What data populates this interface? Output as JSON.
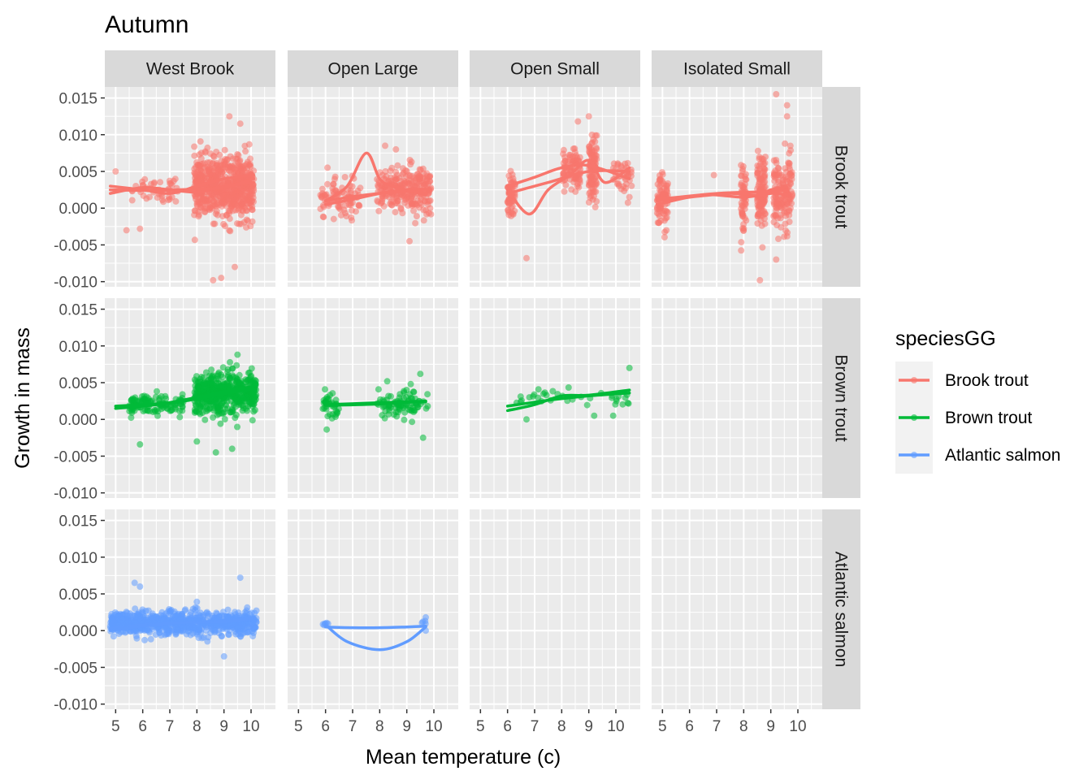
{
  "chart_data": {
    "type": "scatter",
    "title": "Autumn",
    "xlabel": "Mean temperature (c)",
    "ylabel": "Growth in mass",
    "xlim": [
      4.6,
      10.9
    ],
    "ylim": [
      -0.0107,
      0.0165
    ],
    "x_ticks": [
      5,
      6,
      7,
      8,
      9,
      10
    ],
    "y_ticks": [
      -0.01,
      -0.005,
      0.0,
      0.005,
      0.01,
      0.015
    ],
    "y_tick_labels": [
      "-0.010",
      "-0.005",
      "0.000",
      "0.005",
      "0.010",
      "0.015"
    ],
    "facet_columns": [
      "West Brook",
      "Open Large",
      "Open Small",
      "Isolated Small"
    ],
    "facet_rows": [
      "Brook trout",
      "Brown trout",
      "Atlantic salmon"
    ],
    "grid": true,
    "legend": {
      "title": "speciesGG",
      "position": "right",
      "entries": [
        {
          "label": "Brook trout",
          "color": "#F8766D"
        },
        {
          "label": "Brown trout",
          "color": "#00BA38"
        },
        {
          "label": "Atlantic salmon",
          "color": "#619CFF"
        }
      ]
    },
    "series": [
      {
        "species": "Brook trout",
        "river": "West Brook",
        "color": "#F8766D",
        "scatter": [
          {
            "x_range": [
              5.6,
              7.3
            ],
            "y_center": 0.0027,
            "y_spread": 0.0022,
            "n": 45
          },
          {
            "x_range": [
              7.9,
              10.1
            ],
            "y_center": 0.0028,
            "y_spread": 0.0045,
            "n": 650
          }
        ],
        "outliers": [
          [
            8.6,
            -0.0098
          ],
          [
            8.9,
            -0.0095
          ],
          [
            9.4,
            -0.008
          ],
          [
            9.2,
            0.0125
          ],
          [
            9.6,
            0.0115
          ],
          [
            5.0,
            0.005
          ],
          [
            5.4,
            -0.003
          ],
          [
            5.9,
            -0.0028
          ]
        ],
        "fit_lines": [
          [
            [
              4.8,
              0.002
            ],
            [
              6.0,
              0.0028
            ],
            [
              7.0,
              0.0025
            ],
            [
              8.0,
              0.0022
            ],
            [
              9.0,
              0.003
            ],
            [
              10.1,
              0.0035
            ]
          ],
          [
            [
              4.8,
              0.003
            ],
            [
              6.0,
              0.0025
            ],
            [
              7.0,
              0.002
            ],
            [
              8.0,
              0.003
            ],
            [
              9.0,
              0.004
            ],
            [
              10.1,
              0.0045
            ]
          ],
          [
            [
              4.8,
              0.0025
            ],
            [
              6.5,
              0.0024
            ],
            [
              8.0,
              0.0026
            ],
            [
              9.0,
              0.0028
            ],
            [
              10.1,
              0.004
            ]
          ]
        ]
      },
      {
        "species": "Brook trout",
        "river": "Open Large",
        "color": "#F8766D",
        "scatter": [
          {
            "x_range": [
              5.8,
              7.3
            ],
            "y_center": 0.0012,
            "y_spread": 0.003,
            "n": 90
          },
          {
            "x_range": [
              7.9,
              9.9
            ],
            "y_center": 0.0025,
            "y_spread": 0.0035,
            "n": 260
          }
        ],
        "outliers": [
          [
            8.2,
            0.0085
          ],
          [
            8.6,
            0.008
          ],
          [
            9.1,
            -0.0045
          ]
        ],
        "fit_lines": [
          [
            [
              6.0,
              0.001
            ],
            [
              6.8,
              0.003
            ],
            [
              7.5,
              0.0075
            ],
            [
              8.0,
              0.004
            ],
            [
              8.5,
              0.003
            ],
            [
              9.7,
              0.0018
            ]
          ],
          [
            [
              6.0,
              0.0005
            ],
            [
              7.0,
              0.0012
            ],
            [
              8.0,
              0.002
            ],
            [
              9.0,
              0.0025
            ],
            [
              9.7,
              0.0026
            ]
          ],
          [
            [
              6.0,
              0.001
            ],
            [
              7.5,
              0.0018
            ],
            [
              9.0,
              0.0023
            ],
            [
              9.7,
              0.002
            ]
          ]
        ]
      },
      {
        "species": "Brook trout",
        "river": "Open Small",
        "color": "#F8766D",
        "scatter": [
          {
            "x_range": [
              6.0,
              6.3
            ],
            "y_center": 0.0015,
            "y_spread": 0.0035,
            "n": 60
          },
          {
            "x_range": [
              8.0,
              8.7
            ],
            "y_center": 0.005,
            "y_spread": 0.003,
            "n": 90
          },
          {
            "x_range": [
              9.0,
              9.3
            ],
            "y_center": 0.0055,
            "y_spread": 0.0045,
            "n": 110
          },
          {
            "x_range": [
              9.9,
              10.6
            ],
            "y_center": 0.004,
            "y_spread": 0.003,
            "n": 40
          }
        ],
        "outliers": [
          [
            6.7,
            -0.0068
          ],
          [
            9.0,
            0.0125
          ],
          [
            8.6,
            0.0118
          ]
        ],
        "fit_lines": [
          [
            [
              6.0,
              0.0025
            ],
            [
              6.8,
              -0.0008
            ],
            [
              7.5,
              0.0025
            ],
            [
              8.3,
              0.0045
            ],
            [
              9.0,
              0.0065
            ],
            [
              9.6,
              0.0035
            ],
            [
              10.5,
              0.0055
            ]
          ],
          [
            [
              6.0,
              0.003
            ],
            [
              7.0,
              0.0042
            ],
            [
              8.0,
              0.0055
            ],
            [
              9.0,
              0.0058
            ],
            [
              10.5,
              0.004
            ]
          ],
          [
            [
              6.0,
              0.002
            ],
            [
              7.5,
              0.0035
            ],
            [
              9.0,
              0.005
            ],
            [
              10.5,
              0.005
            ]
          ]
        ]
      },
      {
        "species": "Brook trout",
        "river": "Isolated Small",
        "color": "#F8766D",
        "scatter": [
          {
            "x_range": [
              4.8,
              5.2
            ],
            "y_center": 0.0008,
            "y_spread": 0.004,
            "n": 80
          },
          {
            "x_range": [
              7.9,
              8.1
            ],
            "y_center": 0.0018,
            "y_spread": 0.005,
            "n": 60
          },
          {
            "x_range": [
              8.5,
              8.8
            ],
            "y_center": 0.002,
            "y_spread": 0.0055,
            "n": 120
          },
          {
            "x_range": [
              9.1,
              9.8
            ],
            "y_center": 0.002,
            "y_spread": 0.0055,
            "n": 150
          }
        ],
        "outliers": [
          [
            9.2,
            0.0155
          ],
          [
            9.6,
            0.014
          ],
          [
            9.6,
            0.0125
          ],
          [
            9.2,
            -0.007
          ],
          [
            8.6,
            -0.0098
          ],
          [
            6.9,
            0.0045
          ]
        ],
        "fit_lines": [
          [
            [
              4.8,
              0.001
            ],
            [
              6.0,
              0.0015
            ],
            [
              7.5,
              0.002
            ],
            [
              8.5,
              0.0018
            ],
            [
              9.0,
              0.0025
            ],
            [
              9.6,
              0.0028
            ]
          ],
          [
            [
              4.8,
              0.0005
            ],
            [
              6.5,
              0.0018
            ],
            [
              8.0,
              0.0015
            ],
            [
              9.0,
              0.002
            ],
            [
              9.6,
              0.0018
            ]
          ],
          [
            [
              4.8,
              0.0012
            ],
            [
              7.0,
              0.002
            ],
            [
              8.5,
              0.0022
            ],
            [
              9.6,
              0.0024
            ]
          ]
        ]
      },
      {
        "species": "Brown trout",
        "river": "West Brook",
        "color": "#00BA38",
        "scatter": [
          {
            "x_range": [
              5.5,
              7.5
            ],
            "y_center": 0.002,
            "y_spread": 0.0016,
            "n": 120
          },
          {
            "x_range": [
              7.9,
              10.2
            ],
            "y_center": 0.0035,
            "y_spread": 0.003,
            "n": 520
          }
        ],
        "outliers": [
          [
            5.9,
            -0.0034
          ],
          [
            8.7,
            -0.0045
          ],
          [
            9.3,
            -0.004
          ],
          [
            9.5,
            0.0088
          ],
          [
            8.0,
            -0.003
          ]
        ],
        "fit_lines": [
          [
            [
              5.0,
              0.0018
            ],
            [
              6.0,
              0.002
            ],
            [
              7.0,
              0.0022
            ],
            [
              8.0,
              0.0028
            ],
            [
              9.0,
              0.0035
            ],
            [
              10.1,
              0.0042
            ]
          ],
          [
            [
              5.0,
              0.0015
            ],
            [
              6.5,
              0.002
            ],
            [
              8.0,
              0.003
            ],
            [
              9.0,
              0.0038
            ],
            [
              10.1,
              0.0045
            ]
          ]
        ]
      },
      {
        "species": "Brown trout",
        "river": "Open Large",
        "color": "#00BA38",
        "scatter": [
          {
            "x_range": [
              5.9,
              6.5
            ],
            "y_center": 0.002,
            "y_spread": 0.0022,
            "n": 40
          },
          {
            "x_range": [
              7.9,
              9.8
            ],
            "y_center": 0.0022,
            "y_spread": 0.0024,
            "n": 90
          }
        ],
        "outliers": [
          [
            9.6,
            -0.0025
          ],
          [
            9.5,
            0.0062
          ]
        ],
        "fit_lines": [
          [
            [
              6.0,
              0.002
            ],
            [
              7.5,
              0.0022
            ],
            [
              9.0,
              0.0024
            ],
            [
              9.7,
              0.0024
            ]
          ],
          [
            [
              6.0,
              0.0019
            ],
            [
              8.0,
              0.0021
            ],
            [
              9.7,
              0.0025
            ]
          ]
        ]
      },
      {
        "species": "Brown trout",
        "river": "Open Small",
        "color": "#00BA38",
        "scatter": [
          {
            "x_range": [
              6.0,
              10.6
            ],
            "y_center": 0.003,
            "y_spread": 0.0016,
            "n": 35
          }
        ],
        "outliers": [
          [
            6.7,
            0.0
          ],
          [
            9.2,
            0.0005
          ],
          [
            9.9,
            0.0005
          ],
          [
            10.5,
            0.007
          ]
        ],
        "fit_lines": [
          [
            [
              6.0,
              0.0012
            ],
            [
              7.0,
              0.002
            ],
            [
              8.0,
              0.0032
            ],
            [
              9.0,
              0.0033
            ],
            [
              10.5,
              0.004
            ]
          ],
          [
            [
              6.0,
              0.0018
            ],
            [
              7.5,
              0.0026
            ],
            [
              9.0,
              0.0032
            ],
            [
              10.5,
              0.0036
            ]
          ]
        ]
      },
      {
        "species": "Atlantic salmon",
        "river": "West Brook",
        "color": "#619CFF",
        "scatter": [
          {
            "x_range": [
              4.8,
              10.2
            ],
            "y_center": 0.001,
            "y_spread": 0.0018,
            "n": 720
          }
        ],
        "outliers": [
          [
            5.7,
            0.0065
          ],
          [
            5.9,
            0.006
          ],
          [
            9.6,
            0.0072
          ],
          [
            9.0,
            -0.0035
          ]
        ],
        "fit_lines": [
          [
            [
              4.8,
              0.0003
            ],
            [
              6.0,
              0.0008
            ],
            [
              7.0,
              0.001
            ],
            [
              8.0,
              0.0012
            ],
            [
              9.0,
              0.0013
            ],
            [
              10.1,
              0.0016
            ]
          ],
          [
            [
              4.8,
              0.0
            ],
            [
              6.0,
              0.0006
            ],
            [
              7.5,
              0.0011
            ],
            [
              9.0,
              0.0012
            ],
            [
              10.1,
              0.0018
            ]
          ]
        ]
      },
      {
        "species": "Atlantic salmon",
        "river": "Open Large",
        "color": "#619CFF",
        "scatter": [
          {
            "x_range": [
              5.9,
              6.3
            ],
            "y_center": 0.001,
            "y_spread": 0.0004,
            "n": 6
          },
          {
            "x_range": [
              9.5,
              9.7
            ],
            "y_center": 0.001,
            "y_spread": 0.0008,
            "n": 4
          }
        ],
        "outliers": [
          [
            9.7,
            0.0018
          ],
          [
            9.7,
            0.0
          ]
        ],
        "fit_lines": [
          [
            [
              6.0,
              0.0005
            ],
            [
              7.0,
              0.0004
            ],
            [
              8.0,
              0.0004
            ],
            [
              9.0,
              0.0005
            ],
            [
              9.7,
              0.0006
            ]
          ],
          [
            [
              6.0,
              0.0008
            ],
            [
              6.8,
              -0.0015
            ],
            [
              8.0,
              -0.0026
            ],
            [
              9.0,
              -0.0015
            ],
            [
              9.7,
              0.0005
            ]
          ]
        ]
      }
    ]
  }
}
